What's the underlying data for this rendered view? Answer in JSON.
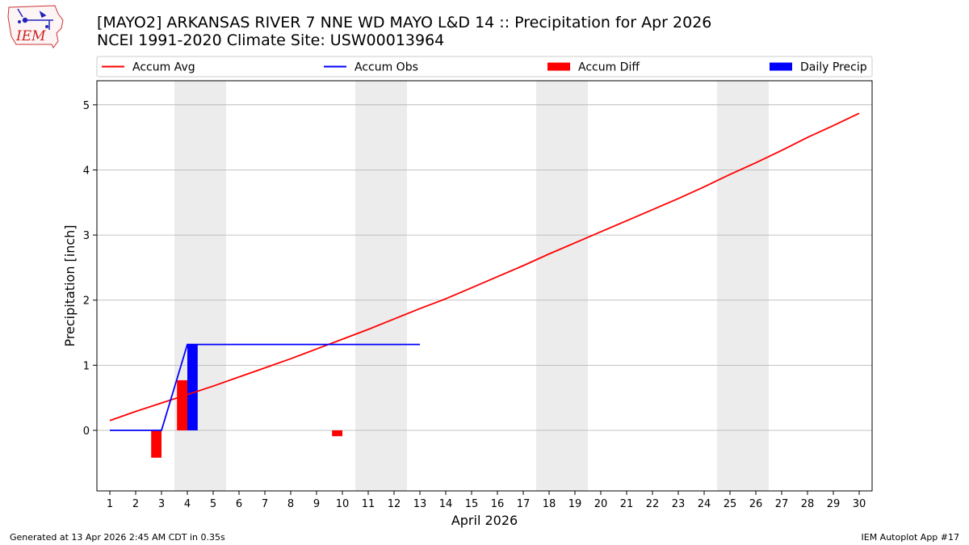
{
  "header": {
    "title_line1": "[MAYO2] ARKANSAS RIVER 7 NNE WD MAYO L&D 14 :: Precipitation for Apr 2026",
    "title_line2": "NCEI 1991-2020 Climate Site: USW00013964"
  },
  "logo": {
    "text": "IEM",
    "icon": "iem-logo-iowa-map-weather-station"
  },
  "footer": {
    "left": "Generated at 13 Apr 2026 2:45 AM CDT in 0.35s",
    "right": "IEM Autoplot App #17"
  },
  "chart_data": {
    "type": "bar",
    "xlabel": "April 2026",
    "ylabel": "Precipitation [inch]",
    "xlim": [
      0.5,
      30.5
    ],
    "ylim": [
      -0.93,
      5.37
    ],
    "x_ticks": [
      "1",
      "2",
      "3",
      "4",
      "5",
      "6",
      "7",
      "8",
      "9",
      "10",
      "11",
      "12",
      "13",
      "14",
      "15",
      "16",
      "17",
      "18",
      "19",
      "20",
      "21",
      "22",
      "23",
      "24",
      "25",
      "26",
      "27",
      "28",
      "29",
      "30"
    ],
    "y_ticks": [
      0,
      1,
      2,
      3,
      4,
      5
    ],
    "grid": "horizontal",
    "weekend_shading": [
      [
        3.5,
        5.5
      ],
      [
        10.5,
        12.5
      ],
      [
        17.5,
        19.5
      ],
      [
        24.5,
        26.5
      ]
    ],
    "legend": {
      "placement": "top",
      "entries": [
        {
          "label": "Accum Avg",
          "kind": "line",
          "color": "#ff0000"
        },
        {
          "label": "Accum Obs",
          "kind": "line",
          "color": "#0000ff"
        },
        {
          "label": "Accum Diff",
          "kind": "bar",
          "color": "#ff0000"
        },
        {
          "label": "Daily Precip",
          "kind": "bar",
          "color": "#0000ff"
        }
      ]
    },
    "series": [
      {
        "name": "Accum Avg",
        "type": "line",
        "color": "#ff0000",
        "x": [
          1,
          2,
          3,
          4,
          5,
          6,
          7,
          8,
          9,
          10,
          11,
          12,
          13,
          14,
          15,
          16,
          17,
          18,
          19,
          20,
          21,
          22,
          23,
          24,
          25,
          26,
          27,
          28,
          29,
          30
        ],
        "values": [
          0.15,
          0.29,
          0.42,
          0.55,
          0.68,
          0.82,
          0.96,
          1.1,
          1.25,
          1.4,
          1.55,
          1.71,
          1.87,
          2.02,
          2.19,
          2.36,
          2.53,
          2.71,
          2.88,
          3.05,
          3.22,
          3.39,
          3.56,
          3.74,
          3.93,
          4.11,
          4.3,
          4.5,
          4.68,
          4.87
        ]
      },
      {
        "name": "Accum Obs",
        "type": "line",
        "color": "#0000ff",
        "x": [
          1,
          2,
          3,
          4,
          5,
          6,
          7,
          8,
          9,
          10,
          11,
          12,
          13
        ],
        "values": [
          0,
          0,
          0,
          1.32,
          1.32,
          1.32,
          1.32,
          1.32,
          1.32,
          1.32,
          1.32,
          1.32,
          1.32
        ]
      },
      {
        "name": "Accum Diff",
        "type": "bar",
        "color": "#ff0000",
        "x": [
          3,
          4,
          10
        ],
        "values": [
          -0.42,
          0.77,
          -0.09
        ]
      },
      {
        "name": "Daily Precip",
        "type": "bar",
        "color": "#0000ff",
        "x": [
          4
        ],
        "values": [
          1.32
        ]
      }
    ]
  }
}
